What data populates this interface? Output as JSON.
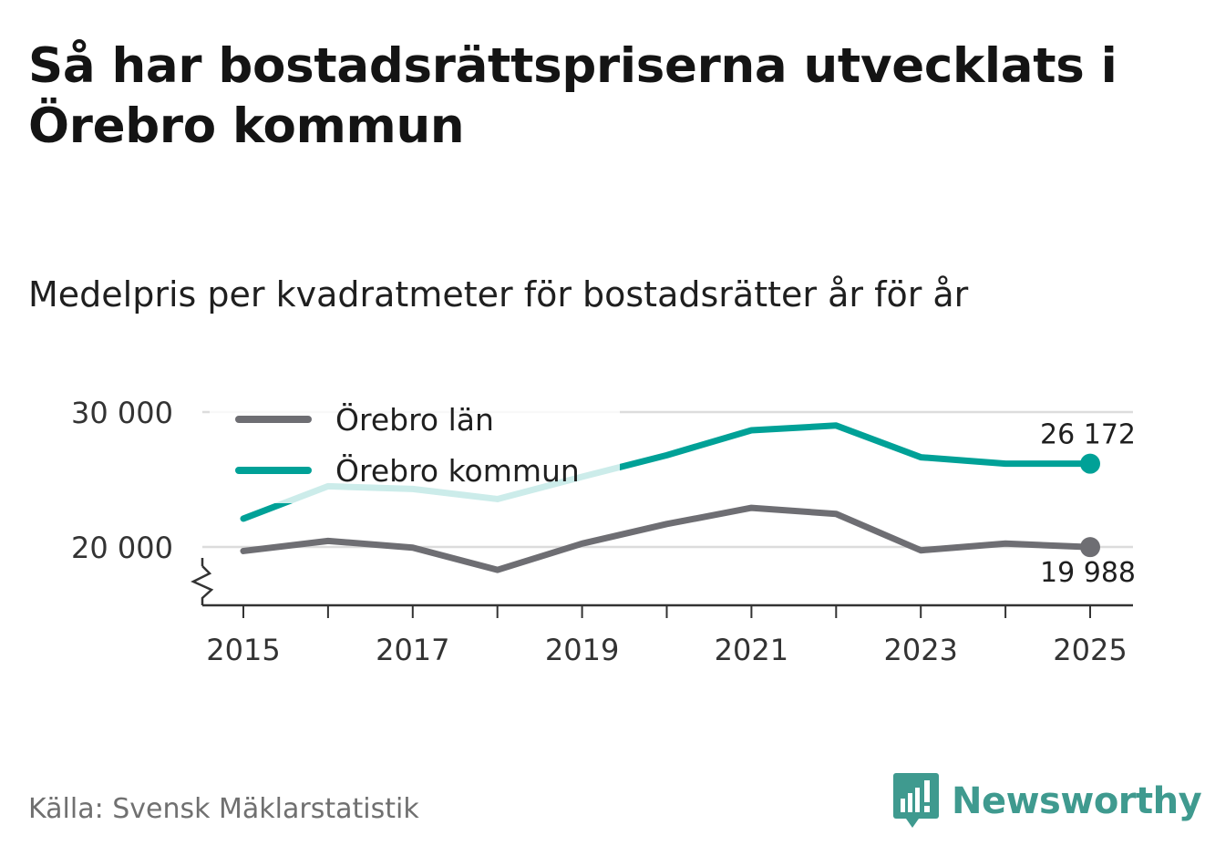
{
  "title": "Så har bostadsrättspriserna utvecklats i Örebro kommun",
  "subtitle": "Medelpris per kvadratmeter för bostadsrätter år för år",
  "source": "Källa: Svensk Mäklarstatistik",
  "brand": "Newsworthy",
  "chart_data": {
    "type": "line",
    "x": [
      2015,
      2016,
      2017,
      2018,
      2019,
      2020,
      2021,
      2022,
      2023,
      2024,
      2025
    ],
    "series": [
      {
        "name": "Örebro län",
        "color": "#6e6e73",
        "values": [
          19700,
          20450,
          19950,
          18300,
          20250,
          21700,
          22900,
          22450,
          19750,
          20250,
          19988
        ],
        "end_label": "19 988"
      },
      {
        "name": "Örebro kommun",
        "color": "#00a197",
        "values": [
          22100,
          24500,
          24300,
          23550,
          25200,
          26800,
          28650,
          29000,
          26650,
          26172,
          26172
        ],
        "end_label": "26 172"
      }
    ],
    "ylim": [
      15500,
      30000
    ],
    "yticks": [
      20000,
      30000
    ],
    "ytick_labels": [
      "20 000",
      "30 000"
    ],
    "xticks": [
      2015,
      2017,
      2019,
      2021,
      2023,
      2025
    ],
    "xtick_labels": [
      "2015",
      "2017",
      "2019",
      "2021",
      "2023",
      "2025"
    ],
    "axis_break": true,
    "grid": true,
    "legend": "top-left"
  }
}
